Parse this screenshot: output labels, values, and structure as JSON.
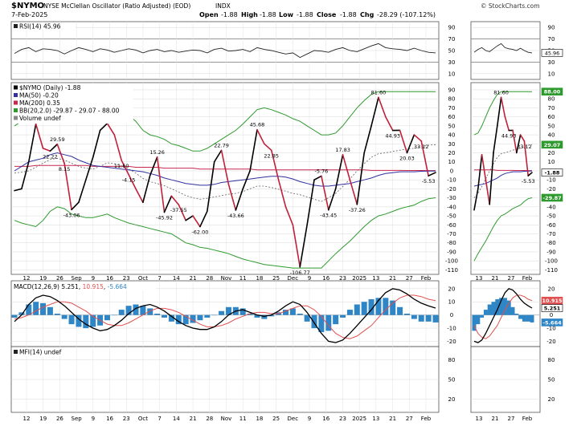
{
  "header": {
    "symbol": "$NYMO",
    "name": "NYSE McClellan Oscillator (Ratio Adjusted) (EOD)",
    "exchange": "INDX",
    "date": "7-Feb-2025",
    "open_label": "Open",
    "open": "-1.88",
    "high_label": "High",
    "high": "-1.88",
    "low_label": "Low",
    "low": "-1.88",
    "close_label": "Close",
    "close": "-1.88",
    "chg_label": "Chg",
    "chg": "-28.29 (-107.12%)",
    "watermark": "© StockCharts.com"
  },
  "colors": {
    "price": "#000000",
    "ma50": "#3030a0",
    "ma200": "#c82850",
    "bb": "#2e9a2e",
    "bb_mid": "#606060",
    "macd": "#000000",
    "signal": "#e05050",
    "hist": "#2f86c6",
    "up_tag": "#000000"
  },
  "x_axis": {
    "main_ticks": [
      "12",
      "19",
      "26",
      "Sep",
      "9",
      "16",
      "23",
      "Oct",
      "7",
      "14",
      "21",
      "28",
      "Nov",
      "11",
      "18",
      "25",
      "Dec",
      "9",
      "16",
      "23",
      "2025",
      "13",
      "21",
      "27",
      "Feb"
    ],
    "zoom_ticks": [
      "13",
      "21",
      "27",
      "Feb"
    ]
  },
  "panels": {
    "rsi": {
      "legend": "RSI(14) 45.96",
      "ticks": [
        "90",
        "70",
        "50",
        "30",
        "10"
      ],
      "last_value": "45.96"
    },
    "nymo": {
      "legend": [
        {
          "text": "$NYMO (Daily) -1.88",
          "swatch": "#000000"
        },
        {
          "text": "MA(50) -0.20",
          "swatch": "#3030a0"
        },
        {
          "text": "MA(200) 0.35",
          "swatch": "#c82850"
        },
        {
          "text": "BB(20,2.0) -29.87 - 29.07 - 88.00",
          "swatch": "#2e9a2e"
        },
        {
          "text": "Volume undef",
          "swatch": "#888888"
        }
      ],
      "ticks": [
        "90",
        "80",
        "70",
        "60",
        "50",
        "40",
        "30",
        "20",
        "10",
        "0",
        "-10",
        "-20",
        "-30",
        "-40",
        "-50",
        "-60",
        "-70",
        "-80",
        "-90",
        "-100",
        "-110"
      ],
      "tags": [
        {
          "label": "88.00",
          "color": "#2e9a2e"
        },
        {
          "label": "29.07",
          "color": "#2e9a2e"
        },
        {
          "label": "-1.88",
          "color": "#000000"
        },
        {
          "label": "-29.87",
          "color": "#2e9a2e"
        }
      ],
      "annotations": [
        "29.59",
        "22.22",
        "8.15",
        "-43.06",
        "52.72",
        "11.60",
        "-4.15",
        "15.26",
        "-45.92",
        "-37.55",
        "-62.00",
        "22.79",
        "-43.66",
        "45.68",
        "22.85",
        "-106.77",
        "-5.76",
        "-43.45",
        "17.83",
        "-37.26",
        "81.60",
        "44.93",
        "20.03",
        "33.12",
        "-5.53"
      ],
      "zoom_annotations": [
        "81.60",
        "44.93",
        "33.12",
        "-5.53"
      ]
    },
    "macd": {
      "legend_label": "MACD(12,26,9)",
      "macd": "5.251",
      "signal": "10.915",
      "hist": "-5.664",
      "ticks": [
        "20",
        "10",
        "0",
        "-10",
        "-20"
      ],
      "tags": [
        {
          "label": "10.915",
          "color": "#e05050"
        },
        {
          "label": "5.251",
          "color": "#000000"
        },
        {
          "label": "-5.664",
          "color": "#2f86c6"
        }
      ]
    },
    "mfi": {
      "legend": "MFI(14) undef",
      "ticks": [
        "80",
        "50",
        "20"
      ]
    }
  },
  "chart_data": [
    {
      "type": "line",
      "title": "$NYMO (Daily)",
      "ylim": [
        -115,
        98
      ],
      "series": [
        {
          "name": "$NYMO (Daily)",
          "values": [
            -22,
            -20,
            10,
            52,
            25,
            22,
            29.59,
            8.15,
            -43.06,
            -35,
            -10,
            15,
            45,
            52.72,
            40,
            11.6,
            -4.15,
            -20,
            -35,
            -5,
            15.26,
            -45.92,
            -28,
            -37.55,
            -55,
            -50,
            -62,
            -45,
            10,
            22.79,
            -15,
            -43.66,
            -20,
            0,
            45.68,
            30,
            22.85,
            -10,
            -40,
            -60,
            -106.77,
            -60,
            -10,
            -5.76,
            -43.45,
            -20,
            17.83,
            -10,
            -37.26,
            20,
            50,
            81.6,
            60,
            44.93,
            45,
            20.03,
            40,
            33.12,
            -5.53,
            -1.88
          ]
        },
        {
          "name": "MA(50)",
          "values": [
            0,
            5,
            10,
            12,
            14,
            18,
            20,
            18,
            16,
            12,
            9,
            6,
            5,
            4,
            3,
            2,
            1,
            0,
            -1,
            -3,
            -5,
            -8,
            -10,
            -12,
            -14,
            -15,
            -16,
            -16,
            -15,
            -13,
            -12,
            -11,
            -10,
            -9,
            -8,
            -7,
            -6,
            -6,
            -7,
            -9,
            -12,
            -14,
            -16,
            -17,
            -17,
            -16,
            -15,
            -14,
            -12,
            -10,
            -8,
            -5,
            -3,
            -2,
            -1,
            -1,
            -1,
            -0.5,
            -0.3,
            -0.2
          ]
        },
        {
          "name": "MA(200)",
          "values": [
            5,
            5,
            5,
            6,
            6,
            6,
            6,
            6,
            6,
            6,
            6,
            5,
            5,
            5,
            5,
            5,
            5,
            4,
            4,
            4,
            4,
            3,
            3,
            3,
            3,
            3,
            2,
            2,
            2,
            2,
            2,
            2,
            2,
            2,
            1,
            1,
            1,
            1,
            1,
            1,
            1,
            1,
            1,
            1,
            1,
            1,
            1,
            1,
            1,
            1,
            0.5,
            0.5,
            0.5,
            0.5,
            0.5,
            0.4,
            0.4,
            0.4,
            0.35,
            0.35
          ]
        },
        {
          "name": "BB upper",
          "values": [
            50,
            55,
            60,
            70,
            72,
            70,
            68,
            66,
            65,
            60,
            58,
            56,
            60,
            66,
            68,
            66,
            62,
            55,
            45,
            40,
            38,
            35,
            30,
            28,
            25,
            22,
            22,
            25,
            30,
            35,
            40,
            45,
            52,
            60,
            68,
            70,
            68,
            65,
            62,
            58,
            55,
            50,
            45,
            40,
            40,
            42,
            50,
            60,
            70,
            78,
            85,
            88,
            88,
            88,
            88,
            88,
            88,
            88,
            88,
            88
          ]
        },
        {
          "name": "BB lower",
          "values": [
            -55,
            -58,
            -60,
            -62,
            -55,
            -45,
            -40,
            -42,
            -48,
            -50,
            -52,
            -52,
            -50,
            -48,
            -52,
            -55,
            -58,
            -60,
            -62,
            -64,
            -66,
            -68,
            -70,
            -75,
            -80,
            -82,
            -85,
            -86,
            -88,
            -90,
            -92,
            -95,
            -98,
            -100,
            -102,
            -104,
            -105,
            -106,
            -107,
            -108,
            -108,
            -108,
            -108,
            -108,
            -100,
            -92,
            -85,
            -78,
            -70,
            -62,
            -55,
            -50,
            -48,
            -45,
            -42,
            -40,
            -38,
            -34,
            -31,
            -29.87
          ]
        }
      ]
    },
    {
      "type": "line",
      "title": "MACD(12,26,9)",
      "ylim": [
        -24,
        26
      ],
      "series": [
        {
          "name": "MACD",
          "values": [
            -5,
            0,
            8,
            13,
            15,
            14,
            11,
            7,
            2,
            -3,
            -7,
            -10,
            -12,
            -11,
            -8,
            -4,
            1,
            5,
            7,
            8,
            6,
            3,
            -1,
            -5,
            -8,
            -10,
            -11,
            -11,
            -9,
            -5,
            0,
            3,
            4,
            2,
            0,
            -1,
            0,
            3,
            7,
            10,
            8,
            2,
            -6,
            -14,
            -20,
            -21,
            -19,
            -14,
            -8,
            -2,
            4,
            11,
            17,
            20,
            19,
            16,
            12,
            9,
            7,
            5.251
          ]
        },
        {
          "name": "Signal",
          "values": [
            -3,
            -2,
            0,
            3,
            6,
            8,
            10,
            10,
            9,
            6,
            3,
            -1,
            -4,
            -7,
            -8,
            -8,
            -6,
            -3,
            0,
            3,
            5,
            5,
            4,
            2,
            -1,
            -4,
            -7,
            -9,
            -9,
            -8,
            -6,
            -3,
            -1,
            1,
            2,
            2,
            1,
            1,
            3,
            5,
            7,
            7,
            4,
            -1,
            -8,
            -14,
            -17,
            -18,
            -16,
            -12,
            -8,
            -2,
            4,
            9,
            13,
            15,
            15,
            14,
            12,
            10.915
          ]
        },
        {
          "name": "Histogram",
          "values": [
            -2,
            2,
            8,
            10,
            9,
            6,
            1,
            -3,
            -7,
            -9,
            -10,
            -9,
            -8,
            -4,
            0,
            4,
            7,
            8,
            7,
            5,
            1,
            -2,
            -5,
            -7,
            -7,
            -6,
            -4,
            -2,
            0,
            3,
            6,
            6,
            5,
            1,
            -2,
            -3,
            -1,
            2,
            4,
            5,
            1,
            -5,
            -10,
            -13,
            -12,
            -7,
            -2,
            4,
            8,
            10,
            12,
            13,
            13,
            11,
            6,
            1,
            -3,
            -5,
            -5,
            -5.664
          ]
        }
      ]
    },
    {
      "type": "line",
      "title": "RSI(14)",
      "ylim": [
        0,
        100
      ],
      "series": [
        {
          "name": "RSI(14)",
          "values": [
            45,
            52,
            55,
            48,
            53,
            52,
            50,
            44,
            50,
            55,
            52,
            48,
            53,
            51,
            47,
            50,
            53,
            51,
            46,
            50,
            52,
            48,
            50,
            47,
            49,
            51,
            50,
            46,
            52,
            54,
            49,
            50,
            52,
            48,
            55,
            52,
            50,
            47,
            44,
            46,
            38,
            44,
            50,
            49,
            47,
            52,
            55,
            50,
            48,
            53,
            58,
            62,
            55,
            53,
            52,
            50,
            54,
            50,
            47,
            45.96
          ]
        }
      ]
    }
  ]
}
